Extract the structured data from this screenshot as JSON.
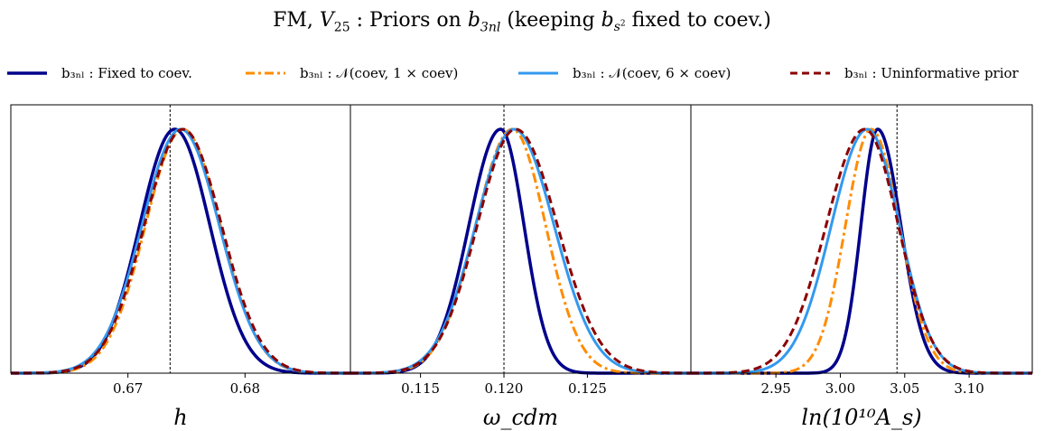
{
  "title": "FM, V₂₅ : Priors on b₃ₙₗ (keeping b_s² fixed to coev.)",
  "legend": [
    {
      "label": "b₃ₙₗ : Fixed to coev.",
      "color": "#00008b",
      "style": "solid"
    },
    {
      "label": "b₃ₙₗ : 𝒩(coev, 1 × coev)",
      "color": "#ff8c00",
      "style": "dashdot"
    },
    {
      "label": "b₃ₙₗ : 𝒩(coev, 6 × coev)",
      "color": "#3399ee",
      "style": "solid"
    },
    {
      "label": "b₃ₙₗ : Uninformative prior",
      "color": "#8b0000",
      "style": "dashed"
    }
  ],
  "chart_data": [
    {
      "type": "line",
      "xlabel": "h",
      "xlim": [
        0.66,
        0.689
      ],
      "ticks": [
        0.67,
        0.68
      ],
      "tick_labels": [
        "0.67",
        "0.68"
      ],
      "fiducial": 0.6736,
      "series": [
        {
          "name": "b₃ₙₗ : Fixed to coev.",
          "mean": 0.674,
          "sigma": 0.003
        },
        {
          "name": "b₃ₙₗ : 𝒩(coev, 1 × coev)",
          "mean": 0.6747,
          "sigma": 0.0032
        },
        {
          "name": "b₃ₙₗ : 𝒩(coev, 6 × coev)",
          "mean": 0.6745,
          "sigma": 0.0033
        },
        {
          "name": "b₃ₙₗ : Uninformative prior",
          "mean": 0.6747,
          "sigma": 0.0033
        }
      ]
    },
    {
      "type": "line",
      "xlabel": "ω_cdm",
      "xlim": [
        0.1108,
        0.1312
      ],
      "ticks": [
        0.115,
        0.12,
        0.125
      ],
      "tick_labels": [
        "0.115",
        "0.120",
        "0.125"
      ],
      "fiducial": 0.12,
      "series": [
        {
          "name": "b₃ₙₗ : Fixed to coev.",
          "mean": 0.1198,
          "sigma_left": 0.0019,
          "sigma_right": 0.0014
        },
        {
          "name": "b₃ₙₗ : 𝒩(coev, 1 × coev)",
          "mean": 0.1205,
          "sigma_left": 0.0022,
          "sigma_right": 0.002
        },
        {
          "name": "b₃ₙₗ : 𝒩(coev, 6 × coev)",
          "mean": 0.1206,
          "sigma_left": 0.0023,
          "sigma_right": 0.0024
        },
        {
          "name": "b₃ₙₗ : Uninformative prior",
          "mean": 0.1207,
          "sigma_left": 0.0023,
          "sigma_right": 0.0025
        }
      ]
    },
    {
      "type": "line",
      "xlabel": "ln(10¹⁰A_s)",
      "xlim": [
        2.884,
        3.149
      ],
      "ticks": [
        2.95,
        3.0,
        3.05,
        3.1
      ],
      "tick_labels": [
        "2.95",
        "3.00",
        "3.05",
        "3.10"
      ],
      "fiducial": 3.044,
      "series": [
        {
          "name": "b₃ₙₗ : Fixed to coev.",
          "mean": 3.029,
          "sigma_left": 0.013,
          "sigma_right": 0.018
        },
        {
          "name": "b₃ₙₗ : 𝒩(coev, 1 × coev)",
          "mean": 3.024,
          "sigma_left": 0.02,
          "sigma_right": 0.022
        },
        {
          "name": "b₃ₙₗ : 𝒩(coev, 6 × coev)",
          "mean": 3.021,
          "sigma_left": 0.028,
          "sigma_right": 0.025
        },
        {
          "name": "b₃ₙₗ : Uninformative prior",
          "mean": 3.019,
          "sigma_left": 0.03,
          "sigma_right": 0.026
        }
      ]
    }
  ]
}
